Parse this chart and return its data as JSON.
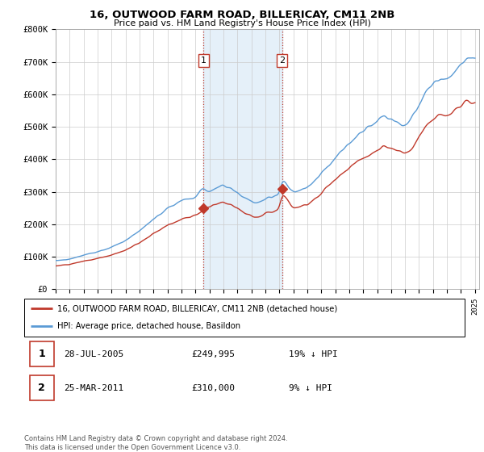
{
  "title": "16, OUTWOOD FARM ROAD, BILLERICAY, CM11 2NB",
  "subtitle": "Price paid vs. HM Land Registry's House Price Index (HPI)",
  "ylim": [
    0,
    800000
  ],
  "yticks": [
    0,
    100000,
    200000,
    300000,
    400000,
    500000,
    600000,
    700000,
    800000
  ],
  "ytick_labels": [
    "£0",
    "£100K",
    "£200K",
    "£300K",
    "£400K",
    "£500K",
    "£600K",
    "£700K",
    "£800K"
  ],
  "hpi_color": "#5b9bd5",
  "price_color": "#c0392b",
  "marker_color": "#c0392b",
  "shade_color": "#daeaf7",
  "grid_color": "#cccccc",
  "background_color": "#ffffff",
  "sale1_year": 2005.583,
  "sale1_price": 249995,
  "sale2_year": 2011.208,
  "sale2_price": 310000,
  "legend_line1": "16, OUTWOOD FARM ROAD, BILLERICAY, CM11 2NB (detached house)",
  "legend_line2": "HPI: Average price, detached house, Basildon",
  "table_row1": [
    "1",
    "28-JUL-2005",
    "£249,995",
    "19% ↓ HPI"
  ],
  "table_row2": [
    "2",
    "25-MAR-2011",
    "£310,000",
    "9% ↓ HPI"
  ],
  "copyright": "Contains HM Land Registry data © Crown copyright and database right 2024.\nThis data is licensed under the Open Government Licence v3.0.",
  "hpi_keypoints": [
    [
      1995.0,
      88000
    ],
    [
      1996.0,
      93000
    ],
    [
      1997.0,
      105000
    ],
    [
      1998.0,
      116000
    ],
    [
      1999.0,
      130000
    ],
    [
      2000.0,
      150000
    ],
    [
      2001.0,
      178000
    ],
    [
      2002.0,
      215000
    ],
    [
      2003.0,
      248000
    ],
    [
      2004.0,
      270000
    ],
    [
      2005.0,
      285000
    ],
    [
      2005.583,
      308000
    ],
    [
      2006.0,
      300000
    ],
    [
      2007.0,
      318000
    ],
    [
      2007.5,
      308000
    ],
    [
      2008.0,
      295000
    ],
    [
      2009.0,
      268000
    ],
    [
      2009.5,
      260000
    ],
    [
      2010.0,
      278000
    ],
    [
      2011.0,
      290000
    ],
    [
      2011.208,
      340000
    ],
    [
      2012.0,
      295000
    ],
    [
      2013.0,
      310000
    ],
    [
      2014.0,
      355000
    ],
    [
      2015.0,
      405000
    ],
    [
      2016.0,
      450000
    ],
    [
      2017.0,
      490000
    ],
    [
      2018.0,
      520000
    ],
    [
      2018.5,
      540000
    ],
    [
      2019.0,
      530000
    ],
    [
      2019.5,
      520000
    ],
    [
      2020.0,
      510000
    ],
    [
      2020.5,
      530000
    ],
    [
      2021.0,
      570000
    ],
    [
      2021.5,
      610000
    ],
    [
      2022.0,
      640000
    ],
    [
      2022.5,
      660000
    ],
    [
      2023.0,
      650000
    ],
    [
      2023.5,
      670000
    ],
    [
      2024.0,
      700000
    ],
    [
      2024.5,
      730000
    ],
    [
      2025.0,
      720000
    ]
  ],
  "price_keypoints": [
    [
      1995.0,
      72000
    ],
    [
      1996.0,
      76000
    ],
    [
      1997.0,
      86000
    ],
    [
      1998.0,
      94000
    ],
    [
      1999.0,
      106000
    ],
    [
      2000.0,
      122000
    ],
    [
      2001.0,
      145000
    ],
    [
      2002.0,
      175000
    ],
    [
      2003.0,
      202000
    ],
    [
      2004.0,
      220000
    ],
    [
      2005.0,
      232000
    ],
    [
      2005.583,
      249995
    ],
    [
      2006.0,
      260000
    ],
    [
      2007.0,
      278000
    ],
    [
      2007.5,
      268000
    ],
    [
      2008.0,
      255000
    ],
    [
      2009.0,
      232000
    ],
    [
      2009.5,
      225000
    ],
    [
      2010.0,
      240000
    ],
    [
      2011.0,
      250000
    ],
    [
      2011.208,
      310000
    ],
    [
      2012.0,
      255000
    ],
    [
      2013.0,
      268000
    ],
    [
      2014.0,
      306000
    ],
    [
      2015.0,
      350000
    ],
    [
      2016.0,
      388000
    ],
    [
      2017.0,
      422000
    ],
    [
      2018.0,
      448000
    ],
    [
      2018.5,
      465000
    ],
    [
      2019.0,
      456000
    ],
    [
      2019.5,
      448000
    ],
    [
      2020.0,
      440000
    ],
    [
      2020.5,
      457000
    ],
    [
      2021.0,
      490000
    ],
    [
      2021.5,
      525000
    ],
    [
      2022.0,
      550000
    ],
    [
      2022.5,
      568000
    ],
    [
      2023.0,
      560000
    ],
    [
      2023.5,
      578000
    ],
    [
      2024.0,
      590000
    ],
    [
      2024.5,
      610000
    ],
    [
      2025.0,
      600000
    ]
  ]
}
